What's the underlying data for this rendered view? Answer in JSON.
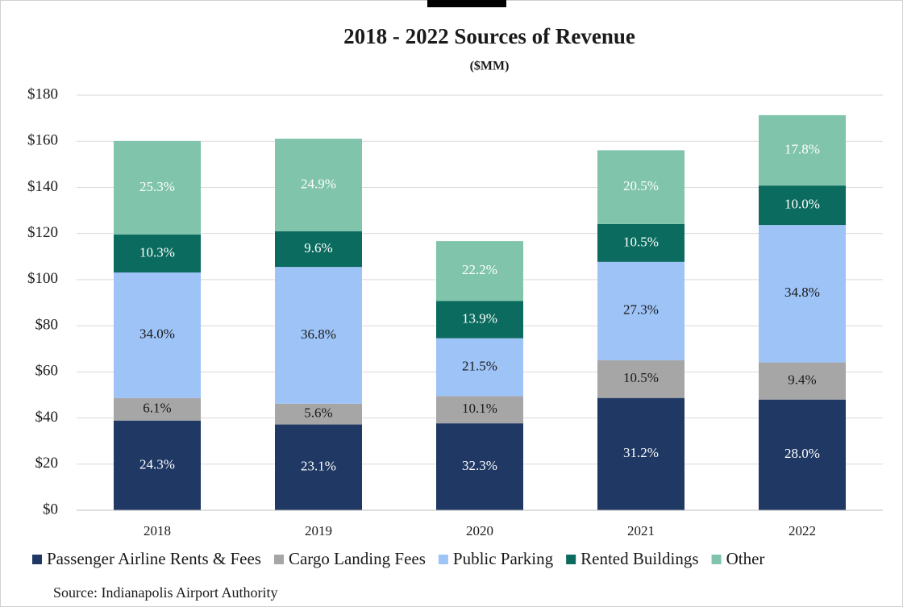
{
  "chart_data": {
    "type": "stacked_bar",
    "title": "2018 - 2022 Sources of Revenue",
    "subtitle": "($MM)",
    "source": "Source:  Indianapolis Airport Authority",
    "categories": [
      "2018",
      "2019",
      "2020",
      "2021",
      "2022"
    ],
    "ylim": [
      0,
      180
    ],
    "yticks": [
      {
        "value": 0,
        "label": "$0"
      },
      {
        "value": 20,
        "label": "$20"
      },
      {
        "value": 40,
        "label": "$40"
      },
      {
        "value": 60,
        "label": "$60"
      },
      {
        "value": 80,
        "label": "$80"
      },
      {
        "value": 100,
        "label": "$100"
      },
      {
        "value": 120,
        "label": "$120"
      },
      {
        "value": 140,
        "label": "$140"
      },
      {
        "value": 160,
        "label": "$160"
      },
      {
        "value": 180,
        "label": "$180"
      }
    ],
    "grid": true,
    "legend": "bottom",
    "series": [
      {
        "name": "Passenger Airline Rents & Fees",
        "color": "#1f3864",
        "label_color": "#ffffff",
        "values": [
          38.9,
          37.2,
          37.7,
          48.7,
          48.0
        ],
        "share_labels": [
          "24.3%",
          "23.1%",
          "32.3%",
          "31.2%",
          "28.0%"
        ]
      },
      {
        "name": "Cargo Landing Fees",
        "color": "#a6a6a6",
        "label_color": "#1a1a1a",
        "values": [
          9.8,
          9.0,
          11.8,
          16.4,
          16.1
        ],
        "share_labels": [
          "6.1%",
          "5.6%",
          "10.1%",
          "10.5%",
          "9.4%"
        ]
      },
      {
        "name": "Public Parking",
        "color": "#9dc3f7",
        "label_color": "#1a1a1a",
        "values": [
          54.4,
          59.3,
          25.1,
          42.6,
          59.6
        ],
        "share_labels": [
          "34.0%",
          "36.8%",
          "21.5%",
          "27.3%",
          "34.8%"
        ]
      },
      {
        "name": "Rented Buildings",
        "color": "#0b6b5e",
        "label_color": "#ffffff",
        "values": [
          16.5,
          15.5,
          16.2,
          16.4,
          17.1
        ],
        "share_labels": [
          "10.3%",
          "9.6%",
          "13.9%",
          "10.5%",
          "10.0%"
        ]
      },
      {
        "name": "Other",
        "color": "#7fc4ab",
        "label_color": "#ffffff",
        "values": [
          40.5,
          40.1,
          25.9,
          32.0,
          30.5
        ],
        "share_labels": [
          "25.3%",
          "24.9%",
          "22.2%",
          "20.5%",
          "17.8%"
        ]
      }
    ]
  }
}
